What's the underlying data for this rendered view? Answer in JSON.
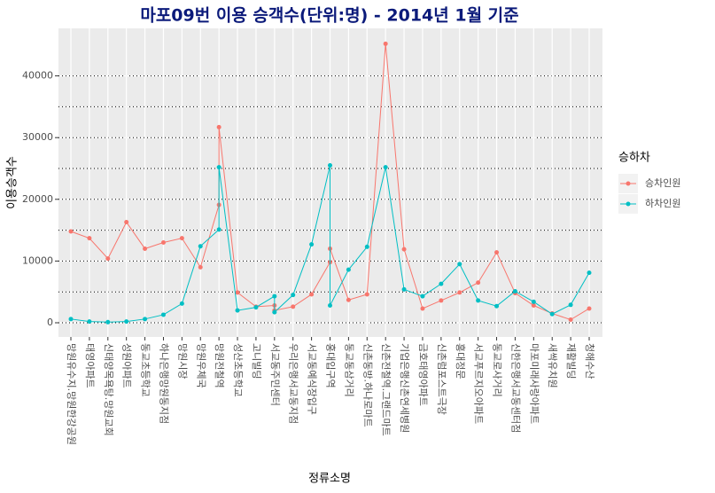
{
  "chart_data": {
    "type": "line",
    "title": "마포09번 이용 승객수(단위:명) - 2014년 1월 기준",
    "x_label": "정류소명",
    "y_label": "이용승객수",
    "legend_title": "승하차",
    "categories": [
      "망원유수지.망원한강공원",
      "태영아파트",
      "신태양목욕탕.망원교회",
      "성원아파트",
      "동교초등학교",
      "하나은행망원동지점",
      "망원시장",
      "망원우체국",
      "망원전철역",
      "망원전철역",
      "성산초등학교",
      "고니빌딩",
      "서교동주민센터",
      "서교동주민센터",
      "우리은행서교동지점",
      "서교동예식장입구",
      "홍대입구역",
      "홍대입구역",
      "동교동삼거리",
      "신촌동방.하나로마트",
      "신촌전철역.그랜드마트",
      "기업은행신촌연세병원",
      "금호태영아파트",
      "신촌럼포스트극장",
      "홍대정문",
      "서교푸르지오아파트",
      "동교로사거리",
      "신한은행서교동센터점",
      "마포미래사랑아파트",
      "새싹유치원",
      "재활빌딩",
      "청해수산"
    ],
    "series": [
      {
        "name": "승차인원",
        "color": "#f8766d",
        "values": [
          14800,
          13700,
          10400,
          16300,
          12000,
          13000,
          13700,
          9000,
          19100,
          31700,
          4900,
          2600,
          2800,
          2000,
          2600,
          4600,
          9800,
          12000,
          3700,
          4600,
          45200,
          11900,
          2300,
          3600,
          4900,
          6500,
          11400,
          4800,
          2800,
          1500,
          500,
          2300
        ]
      },
      {
        "name": "하차인원",
        "color": "#00bfc4",
        "values": [
          600,
          200,
          100,
          200,
          600,
          1300,
          3100,
          12400,
          15100,
          25200,
          2000,
          2500,
          4300,
          1700,
          4500,
          12700,
          25500,
          2800,
          8600,
          12300,
          25200,
          5400,
          4300,
          6300,
          9500,
          3600,
          2700,
          5100,
          3400,
          1400,
          2900,
          8100
        ]
      }
    ],
    "ylim": [
      -2300,
      47700
    ],
    "yticks": [
      0,
      10000,
      20000,
      30000,
      40000
    ],
    "grid": true
  }
}
